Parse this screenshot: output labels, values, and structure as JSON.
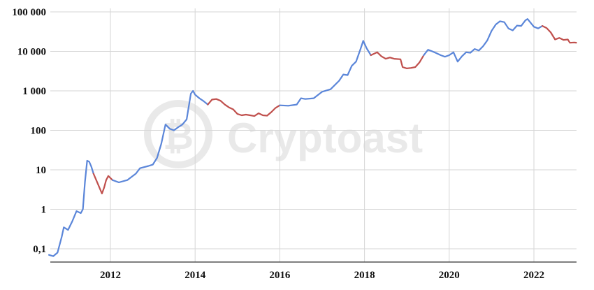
{
  "chart_data": {
    "type": "line",
    "title": "",
    "xlabel": "",
    "ylabel": "",
    "yscale": "log",
    "ylim": [
      0.05,
      100000
    ],
    "xlim": [
      2010.55,
      2023.0
    ],
    "grid": true,
    "x_ticks": [
      2012,
      2014,
      2016,
      2018,
      2020,
      2022
    ],
    "x_tick_labels": [
      "2012",
      "2014",
      "2016",
      "2018",
      "2020",
      "2022"
    ],
    "y_ticks": [
      0.1,
      1,
      10,
      100,
      1000,
      10000,
      100000
    ],
    "y_tick_labels": [
      "0,1",
      "1",
      "10",
      "100",
      "1 000",
      "10 000",
      "100 000"
    ],
    "colors": {
      "up": "#5B86D9",
      "down": "#C0504D",
      "grid": "#d6d6d6",
      "axis": "#333333"
    },
    "series": [
      {
        "color": "up",
        "points": [
          [
            2010.55,
            0.07
          ],
          [
            2010.65,
            0.065
          ],
          [
            2010.75,
            0.08
          ],
          [
            2010.85,
            0.2
          ],
          [
            2010.9,
            0.35
          ],
          [
            2011.0,
            0.3
          ],
          [
            2011.1,
            0.5
          ],
          [
            2011.2,
            0.9
          ],
          [
            2011.3,
            0.8
          ],
          [
            2011.35,
            1.0
          ],
          [
            2011.4,
            5.0
          ],
          [
            2011.45,
            17.0
          ],
          [
            2011.5,
            16.0
          ],
          [
            2011.55,
            12.0
          ],
          [
            2011.6,
            8.0
          ]
        ]
      },
      {
        "color": "down",
        "points": [
          [
            2011.6,
            8.0
          ],
          [
            2011.7,
            4.5
          ],
          [
            2011.8,
            2.5
          ],
          [
            2011.85,
            3.5
          ],
          [
            2011.9,
            5.5
          ],
          [
            2011.95,
            7.0
          ],
          [
            2012.05,
            5.5
          ]
        ]
      },
      {
        "color": "up",
        "points": [
          [
            2012.05,
            5.5
          ],
          [
            2012.2,
            4.8
          ],
          [
            2012.4,
            5.5
          ],
          [
            2012.6,
            8.0
          ],
          [
            2012.7,
            11.0
          ],
          [
            2012.9,
            12.5
          ],
          [
            2013.0,
            13.5
          ],
          [
            2013.1,
            20.0
          ],
          [
            2013.2,
            45.0
          ],
          [
            2013.3,
            140.0
          ],
          [
            2013.4,
            110.0
          ],
          [
            2013.5,
            100.0
          ],
          [
            2013.6,
            120.0
          ],
          [
            2013.7,
            140.0
          ],
          [
            2013.8,
            190.0
          ],
          [
            2013.9,
            850.0
          ],
          [
            2013.95,
            1000.0
          ],
          [
            2014.0,
            800.0
          ],
          [
            2014.1,
            650.0
          ],
          [
            2014.2,
            550.0
          ],
          [
            2014.3,
            450.0
          ]
        ]
      },
      {
        "color": "down",
        "points": [
          [
            2014.3,
            450.0
          ],
          [
            2014.4,
            600.0
          ],
          [
            2014.5,
            620.0
          ],
          [
            2014.6,
            560.0
          ],
          [
            2014.7,
            450.0
          ],
          [
            2014.8,
            380.0
          ],
          [
            2014.9,
            340.0
          ],
          [
            2015.0,
            260.0
          ],
          [
            2015.1,
            240.0
          ],
          [
            2015.2,
            250.0
          ],
          [
            2015.3,
            240.0
          ],
          [
            2015.4,
            230.0
          ],
          [
            2015.5,
            270.0
          ],
          [
            2015.6,
            240.0
          ],
          [
            2015.7,
            235.0
          ],
          [
            2015.8,
            290.0
          ],
          [
            2015.9,
            370.0
          ],
          [
            2016.0,
            430.0
          ]
        ]
      },
      {
        "color": "up",
        "points": [
          [
            2016.0,
            430.0
          ],
          [
            2016.2,
            420.0
          ],
          [
            2016.4,
            450.0
          ],
          [
            2016.5,
            650.0
          ],
          [
            2016.6,
            620.0
          ],
          [
            2016.8,
            650.0
          ],
          [
            2017.0,
            950.0
          ],
          [
            2017.2,
            1100.0
          ],
          [
            2017.4,
            1800.0
          ],
          [
            2017.5,
            2600.0
          ],
          [
            2017.6,
            2500.0
          ],
          [
            2017.7,
            4300.0
          ],
          [
            2017.8,
            5500.0
          ],
          [
            2017.9,
            11000.0
          ],
          [
            2017.97,
            18500.0
          ],
          [
            2018.05,
            12000.0
          ],
          [
            2018.15,
            8000.0
          ]
        ]
      },
      {
        "color": "down",
        "points": [
          [
            2018.15,
            8000.0
          ],
          [
            2018.3,
            9500.0
          ],
          [
            2018.4,
            7500.0
          ],
          [
            2018.5,
            6500.0
          ],
          [
            2018.6,
            7000.0
          ],
          [
            2018.7,
            6500.0
          ],
          [
            2018.85,
            6300.0
          ],
          [
            2018.9,
            4000.0
          ],
          [
            2019.0,
            3700.0
          ],
          [
            2019.1,
            3800.0
          ],
          [
            2019.2,
            4000.0
          ],
          [
            2019.3,
            5300.0
          ],
          [
            2019.4,
            8000.0
          ]
        ]
      },
      {
        "color": "up",
        "points": [
          [
            2019.4,
            8000.0
          ],
          [
            2019.5,
            11000.0
          ],
          [
            2019.6,
            10000.0
          ],
          [
            2019.7,
            9000.0
          ],
          [
            2019.8,
            8000.0
          ],
          [
            2019.9,
            7300.0
          ],
          [
            2020.0,
            8000.0
          ],
          [
            2020.1,
            9500.0
          ],
          [
            2020.2,
            5500.0
          ],
          [
            2020.3,
            7500.0
          ],
          [
            2020.4,
            9500.0
          ],
          [
            2020.5,
            9200.0
          ],
          [
            2020.6,
            11500.0
          ],
          [
            2020.7,
            10500.0
          ],
          [
            2020.8,
            13500.0
          ],
          [
            2020.9,
            19000.0
          ],
          [
            2021.0,
            33000.0
          ],
          [
            2021.1,
            48000.0
          ],
          [
            2021.2,
            58000.0
          ],
          [
            2021.3,
            55000.0
          ],
          [
            2021.4,
            38000.0
          ],
          [
            2021.5,
            34000.0
          ],
          [
            2021.6,
            45000.0
          ],
          [
            2021.7,
            44000.0
          ],
          [
            2021.8,
            61000.0
          ],
          [
            2021.85,
            66000.0
          ],
          [
            2021.9,
            57000.0
          ],
          [
            2022.0,
            42000.0
          ],
          [
            2022.1,
            38000.0
          ],
          [
            2022.2,
            44000.0
          ]
        ]
      },
      {
        "color": "down",
        "points": [
          [
            2022.2,
            44000.0
          ],
          [
            2022.3,
            39000.0
          ],
          [
            2022.4,
            30000.0
          ],
          [
            2022.5,
            20000.0
          ],
          [
            2022.6,
            22000.0
          ],
          [
            2022.7,
            19500.0
          ],
          [
            2022.8,
            20000.0
          ],
          [
            2022.85,
            16500.0
          ],
          [
            2022.95,
            16800.0
          ],
          [
            2023.0,
            16600.0
          ]
        ]
      }
    ]
  },
  "watermark": {
    "text": "Cryptoast"
  }
}
